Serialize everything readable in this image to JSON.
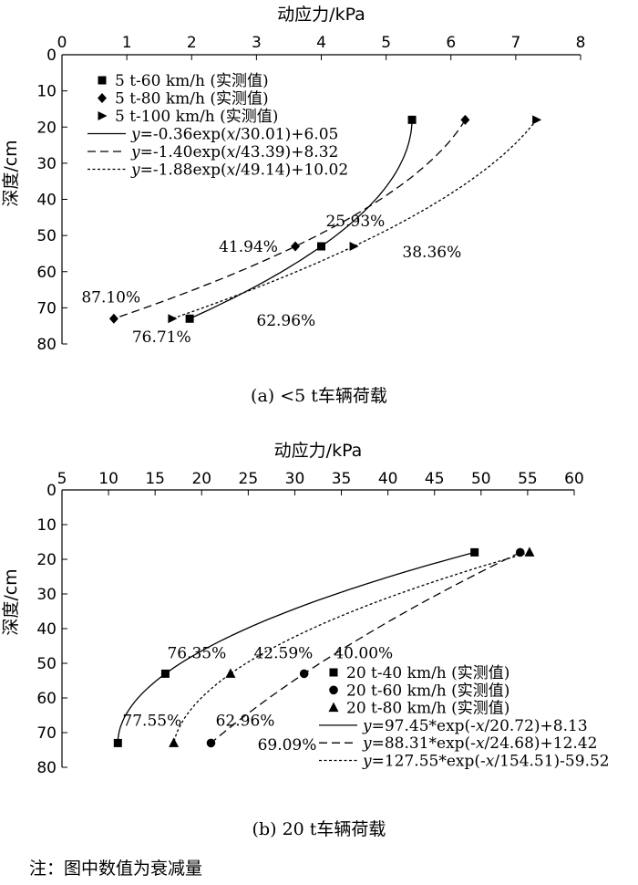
{
  "note": "注：图中数值为衰减量",
  "chart_data": [
    {
      "type": "line",
      "caption": "(a) <5 t车辆荷载",
      "xlabel": "动应力/kPa",
      "ylabel": "深度/cm",
      "xlim": [
        0,
        8
      ],
      "ylim": [
        0,
        80
      ],
      "x_ticks": [
        0,
        1,
        2,
        3,
        4,
        5,
        6,
        7,
        8
      ],
      "y_ticks": [
        0,
        10,
        20,
        30,
        40,
        50,
        60,
        70,
        80
      ],
      "series": [
        {
          "name": "5 t-60 km/h (实测值)",
          "marker": "square",
          "points": [
            {
              "x": 5.4,
              "y": 18
            },
            {
              "x": 4.0,
              "y": 53
            },
            {
              "x": 1.97,
              "y": 73
            }
          ]
        },
        {
          "name": "5 t-80 km/h (实测值)",
          "marker": "diamond",
          "points": [
            {
              "x": 6.22,
              "y": 18
            },
            {
              "x": 3.6,
              "y": 53
            },
            {
              "x": 0.8,
              "y": 73
            }
          ]
        },
        {
          "name": "5 t-100 km/h (实测值)",
          "marker": "triangle-right",
          "points": [
            {
              "x": 7.32,
              "y": 18
            },
            {
              "x": 4.5,
              "y": 53
            },
            {
              "x": 1.7,
              "y": 73
            }
          ]
        }
      ],
      "fits": [
        {
          "label_prefix": "y",
          "label_body": "=-0.36exp(",
          "label_var": "x",
          "label_tail": "/30.01)+6.05",
          "dash": "solid",
          "a": 0.36,
          "b": 30.01,
          "c": 6.05,
          "from_y": 18,
          "to_y": 73
        },
        {
          "label_prefix": "y",
          "label_body": "=-1.40exp(",
          "label_var": "x",
          "label_tail": "/43.39)+8.32",
          "dash": "dashed",
          "a": 1.4,
          "b": 43.39,
          "c": 8.32,
          "from_y": 18,
          "to_y": 73
        },
        {
          "label_prefix": "y",
          "label_body": "=-1.88exp(",
          "label_var": "x",
          "label_tail": "/49.14)+10.02",
          "dash": "dotted",
          "a": 1.88,
          "b": 49.14,
          "c": 10.02,
          "from_y": 18,
          "to_y": 73
        }
      ],
      "annotations": [
        {
          "text": "25.93%",
          "x": 4.07,
          "y": 47.5
        },
        {
          "text": "41.94%",
          "x": 2.42,
          "y": 54.5
        },
        {
          "text": "38.36%",
          "x": 5.25,
          "y": 56
        },
        {
          "text": "87.10%",
          "x": 0.3,
          "y": 68.5
        },
        {
          "text": "62.96%",
          "x": 3.0,
          "y": 75
        },
        {
          "text": "76.71%",
          "x": 1.08,
          "y": 79.5
        }
      ]
    },
    {
      "type": "line",
      "caption": "(b) 20 t车辆荷载",
      "xlabel": "动应力/kPa",
      "ylabel": "深度/cm",
      "xlim": [
        5,
        60
      ],
      "ylim": [
        0,
        80
      ],
      "x_ticks": [
        5,
        10,
        15,
        20,
        25,
        30,
        35,
        40,
        45,
        50,
        55,
        60
      ],
      "y_ticks": [
        0,
        10,
        20,
        30,
        40,
        50,
        60,
        70,
        80
      ],
      "series": [
        {
          "name": "20 t-40 km/h (实测值)",
          "marker": "square",
          "points": [
            {
              "x": 49.3,
              "y": 18
            },
            {
              "x": 16.1,
              "y": 53
            },
            {
              "x": 11.0,
              "y": 73
            }
          ]
        },
        {
          "name": "20 t-60 km/h (实测值)",
          "marker": "circle",
          "points": [
            {
              "x": 54.2,
              "y": 18
            },
            {
              "x": 31.0,
              "y": 53
            },
            {
              "x": 21.0,
              "y": 73
            }
          ]
        },
        {
          "name": "20 t-80 km/h (实测值)",
          "marker": "triangle",
          "points": [
            {
              "x": 55.2,
              "y": 18
            },
            {
              "x": 23.1,
              "y": 53
            },
            {
              "x": 17.0,
              "y": 73
            }
          ]
        }
      ],
      "fits": [
        {
          "label_prefix": "y",
          "label_body": "=97.45*exp(-",
          "label_var": "x",
          "label_tail": "/20.72)+8.13",
          "dash": "solid",
          "a": 97.45,
          "b": 20.72,
          "c": 8.13,
          "from_y": 18,
          "to_y": 73
        },
        {
          "label_prefix": "y",
          "label_body": "=88.31*exp(-",
          "label_var": "x",
          "label_tail": "/24.68)+12.42",
          "dash": "dashed",
          "a": 88.31,
          "b": 24.68,
          "c": 12.42,
          "from_y": 18,
          "to_y": 73
        },
        {
          "label_prefix": "y",
          "label_body": "=127.55*exp(-",
          "label_var": "x",
          "label_tail": "/154.51)-59.52",
          "dash": "dotted",
          "a": 127.55,
          "b": 154.51,
          "c": -59.52,
          "from_y": 18,
          "to_y": 73
        }
      ],
      "annotations": [
        {
          "text": "76.35%",
          "x": 16.3,
          "y": 48.5
        },
        {
          "text": "42.59%",
          "x": 25.6,
          "y": 48.5
        },
        {
          "text": "40.00%",
          "x": 34.2,
          "y": 48.5
        },
        {
          "text": "77.55%",
          "x": 11.5,
          "y": 68
        },
        {
          "text": "62.96%",
          "x": 21.5,
          "y": 68
        },
        {
          "text": "69.09%",
          "x": 26.0,
          "y": 75
        }
      ]
    }
  ]
}
